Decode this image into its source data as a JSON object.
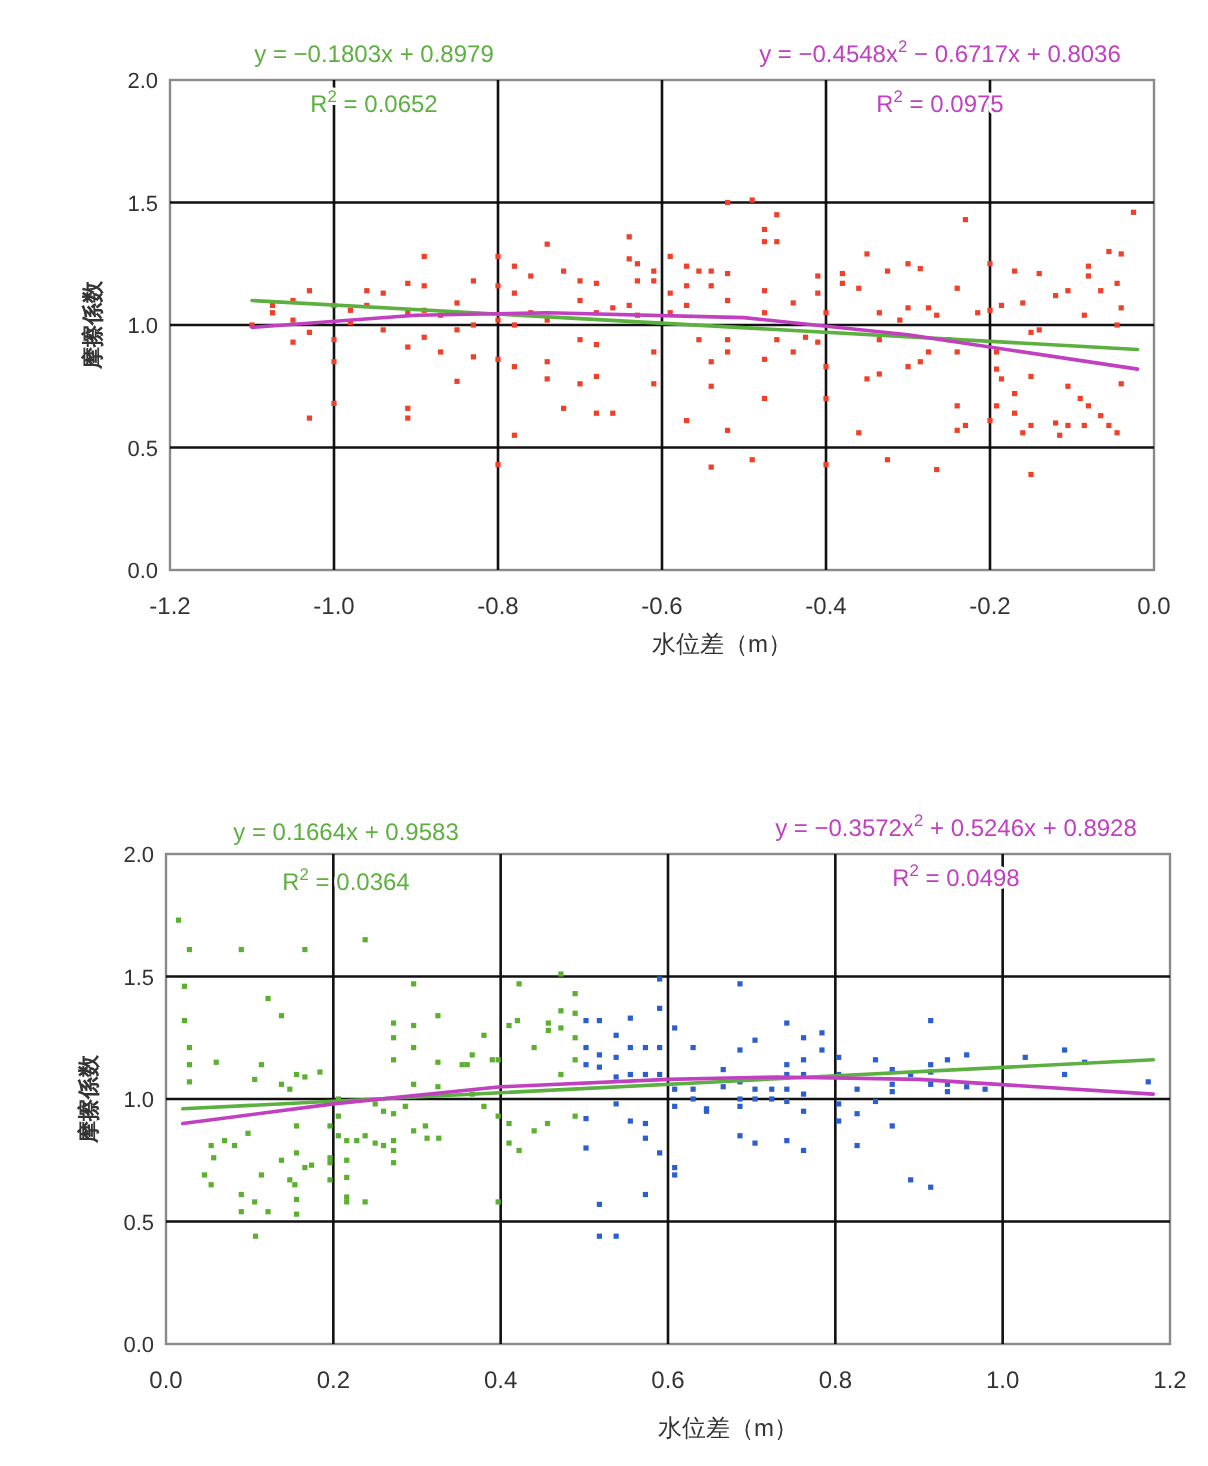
{
  "chart_data": [
    {
      "type": "scatter",
      "xlabel": "水位差（m）",
      "ylabel": "摩擦係数",
      "grid": true,
      "marker": "square",
      "xlim": [
        -1.2,
        0.0
      ],
      "ylim": [
        0.0,
        2.0
      ],
      "xticks": [
        {
          "value": -1.2,
          "label": "-1.2"
        },
        {
          "value": -1.0,
          "label": "-1.0"
        },
        {
          "value": -0.8,
          "label": "-0.8"
        },
        {
          "value": -0.6,
          "label": "-0.6"
        },
        {
          "value": -0.4,
          "label": "-0.4"
        },
        {
          "value": -0.2,
          "label": "-0.2"
        },
        {
          "value": 0.0,
          "label": "0.0"
        }
      ],
      "yticks": [
        {
          "value": 0.0,
          "label": "0.0"
        },
        {
          "value": 0.5,
          "label": "0.5"
        },
        {
          "value": 1.0,
          "label": "1.0"
        },
        {
          "value": 1.5,
          "label": "1.5"
        },
        {
          "value": 2.0,
          "label": "2.0"
        }
      ],
      "annotations": [
        "y = −0.1803x + 0.8979",
        "R$^{2}$ = 0.0652",
        "y = −0.4548x$^{2}$ − 0.6717x + 0.8036",
        "R$^{2}$ = 0.0975"
      ],
      "series": [
        {
          "type": "scatter",
          "color": "#f0402a",
          "x": [
            -1.1,
            -1.075,
            -1.075,
            -1.05,
            -1.05,
            -1.05,
            -1.03,
            -1.03,
            -1.03,
            -1.0,
            -1.0,
            -1.0,
            -1.0,
            -0.98,
            -0.98,
            -0.96,
            -0.96,
            -0.94,
            -0.94,
            -0.91,
            -0.91,
            -0.91,
            -0.91,
            -0.91,
            -0.89,
            -0.89,
            -0.89,
            -0.89,
            -0.87,
            -0.87,
            -0.85,
            -0.85,
            -0.85,
            -0.83,
            -0.83,
            -0.83,
            -0.8,
            -0.8,
            -0.8,
            -0.8,
            -0.8,
            -0.78,
            -0.78,
            -0.78,
            -0.78,
            -0.78,
            -0.76,
            -0.76,
            -0.74,
            -0.74,
            -0.74,
            -0.74,
            -0.72,
            -0.72,
            -0.7,
            -0.7,
            -0.7,
            -0.7,
            -0.68,
            -0.68,
            -0.68,
            -0.68,
            -0.68,
            -0.66,
            -0.66,
            -0.64,
            -0.64,
            -0.64,
            -0.63,
            -0.63,
            -0.63,
            -0.61,
            -0.61,
            -0.61,
            -0.61,
            -0.59,
            -0.59,
            -0.59,
            -0.57,
            -0.57,
            -0.57,
            -0.57,
            -0.555,
            -0.555,
            -0.54,
            -0.54,
            -0.54,
            -0.54,
            -0.54,
            -0.52,
            -0.52,
            -0.52,
            -0.52,
            -0.52,
            -0.52,
            -0.49,
            -0.49,
            -0.475,
            -0.475,
            -0.475,
            -0.475,
            -0.475,
            -0.475,
            -0.46,
            -0.46,
            -0.46,
            -0.44,
            -0.44,
            -0.425,
            -0.41,
            -0.41,
            -0.41,
            -0.4,
            -0.4,
            -0.4,
            -0.4,
            -0.38,
            -0.38,
            -0.36,
            -0.36,
            -0.35,
            -0.35,
            -0.335,
            -0.335,
            -0.335,
            -0.325,
            -0.325,
            -0.31,
            -0.3,
            -0.3,
            -0.3,
            -0.285,
            -0.285,
            -0.275,
            -0.275,
            -0.265,
            -0.265,
            -0.25,
            -0.24,
            -0.24,
            -0.24,
            -0.24,
            -0.23,
            -0.23,
            -0.215,
            -0.2,
            -0.2,
            -0.2,
            -0.192,
            -0.192,
            -0.192,
            -0.186,
            -0.186,
            -0.17,
            -0.17,
            -0.17,
            -0.16,
            -0.16,
            -0.15,
            -0.15,
            -0.15,
            -0.15,
            -0.14,
            -0.14,
            -0.12,
            -0.12,
            -0.115,
            -0.105,
            -0.105,
            -0.105,
            -0.09,
            -0.085,
            -0.085,
            -0.08,
            -0.08,
            -0.08,
            -0.065,
            -0.065,
            -0.055,
            -0.055,
            -0.045,
            -0.045,
            -0.045,
            -0.04,
            -0.04,
            -0.04,
            -0.025
          ],
          "values": [
            1.0,
            1.08,
            1.05,
            1.1,
            1.02,
            0.93,
            1.14,
            0.97,
            0.62,
            1.08,
            0.94,
            0.85,
            0.68,
            1.06,
            1.01,
            1.14,
            1.08,
            1.13,
            0.98,
            1.17,
            1.05,
            0.91,
            0.66,
            0.62,
            1.28,
            1.16,
            1.06,
            0.95,
            1.04,
            0.89,
            1.09,
            0.98,
            0.77,
            1.18,
            1.0,
            0.87,
            1.28,
            1.16,
            1.02,
            0.86,
            0.43,
            1.24,
            1.13,
            1.0,
            0.83,
            0.55,
            1.2,
            1.05,
            1.33,
            1.02,
            0.85,
            0.78,
            1.22,
            0.66,
            1.18,
            1.1,
            0.94,
            0.76,
            1.17,
            1.05,
            0.92,
            0.79,
            0.64,
            1.07,
            0.64,
            1.36,
            1.27,
            1.08,
            1.25,
            1.18,
            1.04,
            1.22,
            1.18,
            0.89,
            0.76,
            1.28,
            1.13,
            1.05,
            1.24,
            1.16,
            1.08,
            0.61,
            1.22,
            0.94,
            1.22,
            1.16,
            0.85,
            0.75,
            0.42,
            1.5,
            1.21,
            1.1,
            0.94,
            0.89,
            0.57,
            1.51,
            0.45,
            1.39,
            1.34,
            1.14,
            1.05,
            0.86,
            0.7,
            1.45,
            1.34,
            0.94,
            1.09,
            0.89,
            0.95,
            1.2,
            1.13,
            0.93,
            1.05,
            0.83,
            0.7,
            0.43,
            1.21,
            1.17,
            1.15,
            0.56,
            1.29,
            0.78,
            1.05,
            0.8,
            0.94,
            1.22,
            0.45,
            1.02,
            1.25,
            1.07,
            0.83,
            1.23,
            0.85,
            1.07,
            0.89,
            1.04,
            0.41,
            0.94,
            1.15,
            0.89,
            0.67,
            0.57,
            1.43,
            0.59,
            1.05,
            1.25,
            1.06,
            0.61,
            0.89,
            0.82,
            0.67,
            1.08,
            0.78,
            1.22,
            0.72,
            0.64,
            1.09,
            0.56,
            0.97,
            0.79,
            0.59,
            0.39,
            1.21,
            0.98,
            1.12,
            0.6,
            0.55,
            1.14,
            0.75,
            0.59,
            0.7,
            1.04,
            0.59,
            1.24,
            1.2,
            0.67,
            1.14,
            0.63,
            1.3,
            0.59,
            1.17,
            1.0,
            0.56,
            1.29,
            1.07,
            0.76,
            1.46
          ]
        },
        {
          "type": "line",
          "marker": "none",
          "color": "#5cb040",
          "x": [
            -1.1,
            -0.02
          ],
          "values": [
            1.1,
            0.9
          ]
        },
        {
          "type": "line",
          "marker": "none",
          "color": "#c040c0",
          "x": [
            -1.1,
            -0.9,
            -0.74,
            -0.5,
            -0.3,
            -0.02
          ],
          "values": [
            0.99,
            1.04,
            1.05,
            1.03,
            0.96,
            0.82
          ]
        }
      ]
    },
    {
      "type": "scatter",
      "xlabel": "水位差（m）",
      "ylabel": "摩擦係数",
      "grid": true,
      "marker": "square",
      "xlim": [
        0.0,
        1.2
      ],
      "ylim": [
        0.0,
        2.0
      ],
      "xticks": [
        {
          "value": 0.0,
          "label": "0.0"
        },
        {
          "value": 0.2,
          "label": "0.2"
        },
        {
          "value": 0.4,
          "label": "0.4"
        },
        {
          "value": 0.6,
          "label": "0.6"
        },
        {
          "value": 0.8,
          "label": "0.8"
        },
        {
          "value": 1.0,
          "label": "1.0"
        },
        {
          "value": 1.2,
          "label": "1.2"
        }
      ],
      "yticks": [
        {
          "value": 0.0,
          "label": "0.0"
        },
        {
          "value": 0.5,
          "label": "0.5"
        },
        {
          "value": 1.0,
          "label": "1.0"
        },
        {
          "value": 1.5,
          "label": "1.5"
        },
        {
          "value": 2.0,
          "label": "2.0"
        }
      ],
      "annotations": [
        "y = 0.1664x + 0.9583",
        "R$^{2}$ = 0.0364",
        "y = −0.3572x$^{2}$ + 0.5246x + 0.8928",
        "R$^{2}$ = 0.0498"
      ],
      "series": [
        {
          "type": "scatter",
          "color": "#5cb030",
          "x": [
            0.015,
            0.022,
            0.022,
            0.028,
            0.028,
            0.028,
            0.028,
            0.046,
            0.054,
            0.054,
            0.057,
            0.06,
            0.07,
            0.082,
            0.09,
            0.09,
            0.09,
            0.098,
            0.106,
            0.106,
            0.107,
            0.114,
            0.114,
            0.122,
            0.122,
            0.138,
            0.138,
            0.138,
            0.148,
            0.148,
            0.154,
            0.156,
            0.156,
            0.156,
            0.156,
            0.156,
            0.166,
            0.166,
            0.166,
            0.174,
            0.184,
            0.196,
            0.196,
            0.196,
            0.196,
            0.206,
            0.206,
            0.206,
            0.216,
            0.216,
            0.216,
            0.216,
            0.216,
            0.228,
            0.238,
            0.238,
            0.238,
            0.25,
            0.25,
            0.26,
            0.26,
            0.272,
            0.272,
            0.272,
            0.272,
            0.272,
            0.272,
            0.272,
            0.286,
            0.296,
            0.296,
            0.296,
            0.296,
            0.296,
            0.31,
            0.312,
            0.325,
            0.325,
            0.325,
            0.326,
            0.354,
            0.36,
            0.366,
            0.366,
            0.38,
            0.38,
            0.39,
            0.397,
            0.397,
            0.397,
            0.41,
            0.41,
            0.41,
            0.42,
            0.422,
            0.422,
            0.44,
            0.44,
            0.456,
            0.457,
            0.457,
            0.472,
            0.472,
            0.472,
            0.472,
            0.489,
            0.489,
            0.489,
            0.489,
            0.489
          ],
          "values": [
            1.73,
            1.46,
            1.32,
            1.61,
            1.21,
            1.14,
            1.07,
            0.69,
            0.81,
            0.65,
            0.76,
            1.15,
            0.83,
            0.81,
            1.61,
            0.61,
            0.54,
            0.86,
            1.08,
            0.58,
            0.44,
            1.14,
            0.69,
            1.41,
            0.54,
            1.34,
            1.06,
            0.75,
            1.04,
            0.67,
            0.65,
            1.1,
            0.89,
            0.78,
            0.59,
            0.53,
            1.61,
            1.09,
            0.72,
            0.73,
            1.11,
            0.89,
            0.76,
            0.74,
            0.67,
            1.0,
            0.93,
            0.85,
            0.83,
            0.75,
            0.68,
            0.6,
            0.58,
            0.83,
            1.65,
            0.85,
            0.58,
            0.98,
            0.82,
            0.81,
            0.95,
            1.31,
            1.25,
            1.16,
            0.94,
            0.83,
            0.79,
            0.74,
            0.97,
            1.47,
            1.3,
            1.21,
            1.06,
            0.87,
            0.89,
            0.84,
            1.34,
            1.15,
            1.05,
            0.84,
            1.14,
            1.14,
            1.18,
            1.02,
            1.26,
            0.97,
            1.16,
            0.93,
            0.58,
            1.16,
            1.3,
            0.9,
            0.82,
            1.32,
            1.47,
            0.79,
            1.21,
            0.87,
            0.9,
            1.31,
            1.28,
            1.51,
            1.36,
            1.29,
            1.1,
            1.43,
            1.35,
            1.25,
            1.16,
            0.93
          ]
        },
        {
          "type": "scatter",
          "color": "#2b5fcf",
          "x": [
            0.502,
            0.502,
            0.502,
            0.502,
            0.502,
            0.518,
            0.518,
            0.518,
            0.518,
            0.518,
            0.538,
            0.538,
            0.538,
            0.538,
            0.538,
            0.555,
            0.555,
            0.555,
            0.555,
            0.573,
            0.573,
            0.573,
            0.573,
            0.573,
            0.59,
            0.59,
            0.59,
            0.59,
            0.59,
            0.608,
            0.608,
            0.608,
            0.608,
            0.608,
            0.63,
            0.63,
            0.63,
            0.646,
            0.646,
            0.666,
            0.666,
            0.686,
            0.686,
            0.686,
            0.686,
            0.686,
            0.686,
            0.704,
            0.704,
            0.704,
            0.704,
            0.724,
            0.724,
            0.742,
            0.742,
            0.742,
            0.742,
            0.742,
            0.742,
            0.762,
            0.762,
            0.762,
            0.762,
            0.762,
            0.762,
            0.784,
            0.784,
            0.804,
            0.804,
            0.804,
            0.804,
            0.826,
            0.826,
            0.826,
            0.848,
            0.848,
            0.868,
            0.868,
            0.868,
            0.868,
            0.89,
            0.89,
            0.914,
            0.914,
            0.914,
            0.914,
            0.914,
            0.934,
            0.934,
            0.934,
            0.957,
            0.957,
            0.979,
            1.027,
            1.074,
            1.074,
            1.098,
            1.174
          ],
          "values": [
            1.32,
            1.21,
            1.14,
            0.92,
            0.8,
            1.32,
            1.18,
            1.13,
            0.57,
            0.44,
            1.26,
            1.17,
            1.09,
            0.98,
            0.44,
            1.33,
            1.21,
            1.1,
            0.91,
            1.21,
            1.1,
            0.9,
            0.84,
            0.61,
            1.49,
            1.37,
            1.21,
            1.1,
            0.78,
            1.29,
            1.04,
            0.97,
            0.72,
            0.69,
            1.21,
            1.04,
            1.0,
            0.96,
            0.95,
            1.12,
            1.05,
            1.47,
            1.2,
            1.07,
            1.0,
            0.97,
            0.85,
            1.24,
            1.04,
            1.0,
            0.82,
            1.04,
            1.0,
            1.31,
            1.14,
            1.1,
            1.04,
            0.99,
            0.83,
            1.25,
            1.16,
            1.1,
            1.02,
            0.95,
            0.79,
            1.27,
            1.2,
            1.17,
            1.1,
            0.98,
            0.91,
            1.04,
            0.94,
            0.81,
            1.16,
            0.99,
            1.12,
            1.06,
            1.03,
            0.89,
            1.1,
            0.67,
            1.32,
            1.14,
            1.11,
            1.06,
            0.64,
            1.16,
            1.06,
            1.03,
            1.18,
            1.05,
            1.04,
            1.17,
            1.2,
            1.1,
            1.15,
            1.07
          ]
        },
        {
          "type": "line",
          "marker": "none",
          "color": "#5cb040",
          "x": [
            0.02,
            1.18
          ],
          "values": [
            0.96,
            1.16
          ]
        },
        {
          "type": "line",
          "marker": "none",
          "color": "#c040c0",
          "x": [
            0.02,
            0.2,
            0.4,
            0.6,
            0.73,
            0.9,
            1.18
          ],
          "values": [
            0.9,
            0.98,
            1.05,
            1.08,
            1.09,
            1.08,
            1.02
          ]
        }
      ]
    }
  ]
}
